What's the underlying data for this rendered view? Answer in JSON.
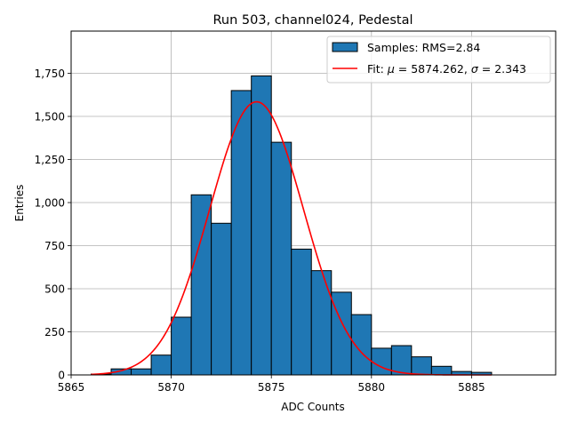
{
  "chart_data": {
    "type": "bar",
    "title": "Run 503, channel024, Pedestal",
    "xlabel": "ADC Counts",
    "ylabel": "Entries",
    "xlim": [
      5865,
      5889.2
    ],
    "ylim": [
      0,
      1995
    ],
    "grid": true,
    "legend_position": "top-right",
    "x_ticks": [
      5865,
      5870,
      5875,
      5880,
      5885
    ],
    "y_ticks": [
      0,
      250,
      500,
      750,
      1000,
      1250,
      1500,
      1750
    ],
    "histogram": {
      "name": "Samples: RMS=2.84",
      "bin_edges": [
        5866,
        5867,
        5868,
        5869,
        5870,
        5871,
        5872,
        5873,
        5874,
        5875,
        5876,
        5877,
        5878,
        5879,
        5880,
        5881,
        5882,
        5883,
        5884,
        5885,
        5886
      ],
      "counts": [
        5,
        35,
        35,
        115,
        335,
        1045,
        880,
        1650,
        1735,
        1350,
        730,
        605,
        480,
        350,
        155,
        170,
        105,
        50,
        20,
        15
      ]
    },
    "fit": {
      "name_prefix": "Fit: ",
      "mu_label": "μ",
      "mu_value": "5874.262",
      "sigma_label": "σ",
      "sigma_value": "2.343",
      "mu": 5874.262,
      "sigma": 2.343,
      "amplitude": 1585,
      "x_range": [
        5866,
        5886
      ]
    }
  },
  "colors": {
    "bar_fill": "#1f77b4",
    "bar_edge": "#000000",
    "fit_line": "#ff0000",
    "grid": "#b0b0b0"
  }
}
